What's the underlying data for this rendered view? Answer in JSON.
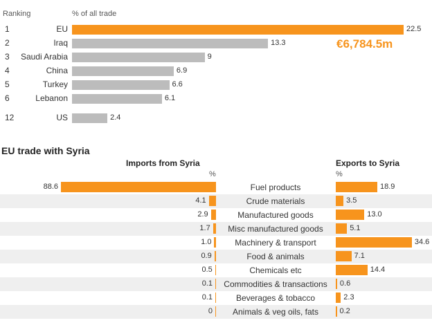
{
  "top_chart": {
    "ranking_header": "Ranking",
    "pct_header": "% of all trade",
    "highlight_value": "€6,784.5m"
  },
  "eu_chart": {
    "title": "EU trade with Syria",
    "imports_header": "Imports from Syria",
    "exports_header": "Exports to Syria",
    "imports_unit": "%",
    "exports_unit": "%"
  },
  "colors": {
    "orange": "#f7941d",
    "grey": "#bcbcbc",
    "stripe": "#efefef"
  },
  "chart_data": [
    {
      "type": "bar",
      "orientation": "horizontal",
      "categories": [
        "EU",
        "Iraq",
        "Saudi Arabia",
        "China",
        "Turkey",
        "Lebanon",
        "US"
      ],
      "rankings": [
        "1",
        "2",
        "3",
        "4",
        "5",
        "6",
        "12"
      ],
      "values": [
        22.5,
        13.3,
        9,
        6.9,
        6.6,
        6.1,
        2.4
      ],
      "value_labels": [
        "22.5",
        "13.3",
        "9",
        "6.9",
        "6.6",
        "6.1",
        "2.4"
      ],
      "xlim": [
        0,
        22.5
      ],
      "highlight_category": "EU",
      "grid": false
    },
    {
      "type": "bar",
      "orientation": "horizontal",
      "categories": [
        "Fuel products",
        "Crude materials",
        "Manufactured goods",
        "Misc manufactured goods",
        "Machinery & transport",
        "Food & animals",
        "Chemicals etc",
        "Commodities & transactions",
        "Beverages & tobacco",
        "Animals & veg oils, fats"
      ],
      "series": [
        {
          "name": "Imports from Syria",
          "values": [
            88.6,
            4.1,
            2.9,
            1.7,
            1.0,
            0.9,
            0.5,
            0.1,
            0.1,
            0
          ],
          "value_labels": [
            "88.6",
            "4.1",
            "2.9",
            "1.7",
            "1.0",
            "0.9",
            "0.5",
            "0.1",
            "0.1",
            "0"
          ]
        },
        {
          "name": "Exports to Syria",
          "values": [
            18.9,
            3.5,
            13.0,
            5.1,
            34.6,
            7.1,
            14.4,
            0.6,
            2.3,
            0.2
          ],
          "value_labels": [
            "18.9",
            "3.5",
            "13.0",
            "5.1",
            "34.6",
            "7.1",
            "14.4",
            "0.6",
            "2.3",
            "0.2"
          ]
        }
      ],
      "grid": false
    }
  ]
}
